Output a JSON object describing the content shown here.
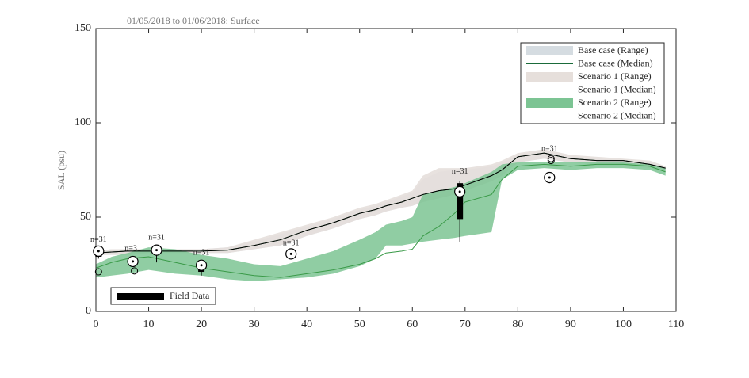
{
  "chart_data": {
    "type": "range_band",
    "title": "01/05/2018 to 01/06/2018: Surface",
    "y_label": "SAL (psu)",
    "xlim": [
      0,
      110
    ],
    "xticks": [
      0,
      10,
      20,
      30,
      40,
      50,
      60,
      70,
      80,
      90,
      100,
      110
    ],
    "ylim": [
      0,
      150
    ],
    "yticks": [
      0,
      50,
      100,
      150
    ],
    "legend": "upper right",
    "x": [
      0,
      3,
      6,
      10,
      15,
      20,
      25,
      30,
      35,
      40,
      45,
      50,
      53,
      55,
      58,
      60,
      62,
      65,
      68,
      70,
      75,
      77,
      80,
      85,
      90,
      95,
      100,
      105,
      108
    ],
    "series": [
      {
        "name": "Base case (Range)",
        "type": "range",
        "color": "#d5dce1",
        "low": [
          30,
          30,
          30,
          31,
          31,
          31,
          31,
          33,
          35,
          40,
          44,
          49,
          51,
          53,
          55,
          56,
          58,
          60,
          62,
          64,
          69,
          72,
          79,
          81,
          79,
          78,
          78,
          76,
          74
        ],
        "high": [
          32,
          33,
          33,
          33,
          33,
          33,
          34,
          37,
          41,
          45,
          49,
          54,
          56,
          58,
          61,
          63,
          70,
          74,
          75,
          75,
          77,
          79,
          83,
          85,
          82,
          81,
          80,
          79,
          77
        ]
      },
      {
        "name": "Base case (Median)",
        "type": "line",
        "color": "#1a6b3a",
        "values": [
          31,
          31.5,
          32,
          32,
          32,
          32,
          32.5,
          35,
          38,
          43,
          47,
          52,
          54,
          56,
          58,
          60,
          62,
          64,
          65,
          67,
          72,
          75,
          82,
          84,
          81,
          80,
          80,
          78,
          76
        ]
      },
      {
        "name": "Scenario 1 (Range)",
        "type": "range",
        "color": "#e6dfdb",
        "low": [
          30,
          30,
          30,
          31,
          31,
          31,
          31,
          33,
          35,
          40,
          44,
          49,
          51,
          53,
          55,
          56,
          58,
          60,
          62,
          64,
          69,
          72,
          79,
          81,
          79,
          78,
          78,
          76,
          74
        ],
        "high": [
          32,
          33,
          33,
          33,
          33,
          33,
          34,
          38,
          42,
          46,
          50,
          55,
          57,
          59,
          62,
          64,
          72,
          76,
          76,
          76,
          78,
          80,
          84,
          86,
          83,
          82,
          81,
          80,
          77
        ]
      },
      {
        "name": "Scenario 1 (Median)",
        "type": "line",
        "color": "#000000",
        "values": [
          31,
          31.5,
          32,
          32,
          32,
          32,
          32.5,
          35,
          38,
          43,
          47,
          52,
          54,
          56,
          58,
          60,
          62,
          64,
          65,
          67,
          72,
          75,
          82,
          84,
          81,
          80,
          80,
          78,
          76
        ]
      },
      {
        "name": "Scenario 2 (Range)",
        "type": "range",
        "color": "#7cc493",
        "low": [
          18,
          19,
          20,
          22,
          20,
          19,
          17,
          16,
          17,
          18,
          20,
          24,
          28,
          35,
          35,
          36,
          37,
          38,
          39,
          40,
          42,
          70,
          75,
          76,
          75,
          76,
          76,
          75,
          72
        ],
        "high": [
          25,
          29,
          31,
          34,
          33,
          30,
          28,
          25,
          24,
          28,
          32,
          38,
          42,
          46,
          48,
          50,
          62,
          64,
          66,
          68,
          74,
          78,
          79,
          79,
          79,
          79,
          79,
          78,
          76
        ]
      },
      {
        "name": "Scenario 2 (Median)",
        "type": "line",
        "color": "#3a9a48",
        "values": [
          23,
          26,
          28,
          29,
          26,
          23,
          21,
          19,
          18,
          20,
          22,
          25,
          28,
          31,
          32,
          33,
          40,
          45,
          52,
          58,
          62,
          70,
          77,
          78,
          77,
          78,
          78,
          77,
          74
        ]
      }
    ],
    "field_data": {
      "name": "Field Data",
      "color": "#000000",
      "boxes": [
        {
          "x": 0.5,
          "median": 32,
          "q1": 29,
          "q3": 32,
          "low": 28,
          "high": 33,
          "outliers": [
            21
          ],
          "label": "n=31"
        },
        {
          "x": 7,
          "median": 26.5,
          "q1": 25,
          "q3": 27,
          "low": 24,
          "high": 28,
          "outliers": [
            21.5
          ],
          "label": "n=31"
        },
        {
          "x": 11.5,
          "median": 32.5,
          "q1": 30,
          "q3": 33,
          "low": 26,
          "high": 34,
          "outliers": [],
          "label": "n=31"
        },
        {
          "x": 20,
          "median": 24.5,
          "q1": 21,
          "q3": 25,
          "low": 19,
          "high": 26,
          "outliers": [],
          "label": "n=31"
        },
        {
          "x": 37,
          "median": 30.5,
          "q1": 30,
          "q3": 31,
          "low": 29,
          "high": 31,
          "outliers": [],
          "label": "n=31"
        },
        {
          "x": 69,
          "median": 63.5,
          "q1": 49,
          "q3": 68,
          "low": 37,
          "high": 69,
          "outliers": [],
          "label": "n=31"
        },
        {
          "x": 86,
          "median": 71,
          "q1": 70,
          "q3": 72,
          "low": 68,
          "high": 73,
          "outliers": [
            80,
            81
          ],
          "label": "n=31"
        }
      ]
    }
  }
}
